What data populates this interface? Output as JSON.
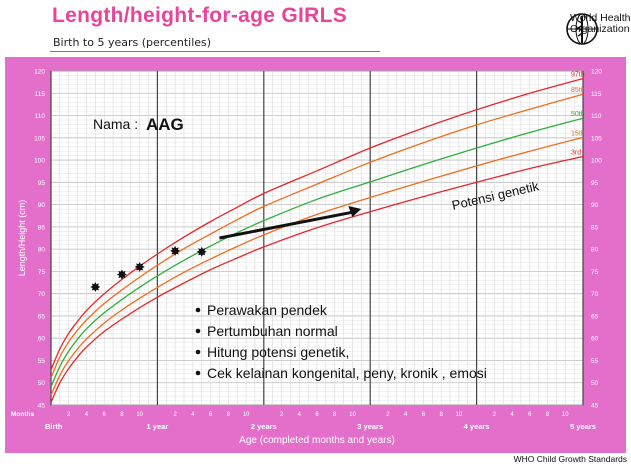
{
  "page": {
    "title": "Length/height-for-age GIRLS",
    "subtitle": "Birth to 5 years (percentiles)",
    "org_line1": "World Health",
    "org_line2": "Organization",
    "footer": "WHO Child Growth Standards"
  },
  "chart_data": {
    "type": "line",
    "xlabel": "Age (completed months and years)",
    "ylabel": "Length/Height (cm)",
    "xlim": [
      0,
      60
    ],
    "ylim": [
      45,
      120
    ],
    "grid": true,
    "months_label": "Months",
    "year_labels": [
      {
        "month": 0,
        "label": "Birth"
      },
      {
        "month": 12,
        "label": "1 year"
      },
      {
        "month": 24,
        "label": "2 years"
      },
      {
        "month": 36,
        "label": "3 years"
      },
      {
        "month": 48,
        "label": "4 years"
      },
      {
        "month": 60,
        "label": "5 years"
      }
    ],
    "y_ticks": [
      45,
      50,
      55,
      60,
      65,
      70,
      75,
      80,
      85,
      90,
      95,
      100,
      105,
      110,
      115,
      120
    ],
    "x": [
      0,
      1,
      2,
      3,
      4,
      6,
      9,
      12,
      15,
      18,
      21,
      24,
      30,
      36,
      42,
      48,
      54,
      60
    ],
    "series": [
      {
        "name": "97th",
        "color": "#e8262a",
        "values": [
          52.9,
          57.6,
          61.1,
          63.8,
          66.2,
          70.0,
          74.7,
          78.9,
          82.7,
          86.2,
          89.4,
          92.5,
          97.6,
          102.7,
          107.2,
          111.3,
          115.0,
          118.3
        ]
      },
      {
        "name": "85th",
        "color": "#f26b1d",
        "values": [
          51.1,
          55.8,
          59.2,
          61.8,
          64.1,
          67.8,
          72.3,
          76.4,
          80.1,
          83.4,
          86.6,
          89.6,
          94.6,
          99.5,
          103.9,
          107.9,
          111.4,
          114.8
        ]
      },
      {
        "name": "50th",
        "color": "#2fae3a",
        "values": [
          49.1,
          53.7,
          57.1,
          59.8,
          62.1,
          65.7,
          70.1,
          74.0,
          77.5,
          80.7,
          83.7,
          86.4,
          91.2,
          95.1,
          99.0,
          102.7,
          106.2,
          109.4
        ]
      },
      {
        "name": "15th",
        "color": "#f26b1d",
        "values": [
          47.2,
          51.7,
          55.0,
          57.6,
          59.8,
          63.4,
          67.7,
          71.4,
          74.8,
          77.8,
          80.6,
          83.2,
          87.8,
          91.6,
          95.2,
          98.7,
          102.0,
          105.1
        ]
      },
      {
        "name": "3rd",
        "color": "#e8262a",
        "values": [
          45.6,
          50.0,
          53.2,
          55.8,
          58.0,
          61.5,
          65.6,
          69.2,
          72.4,
          75.4,
          78.0,
          80.5,
          84.8,
          88.4,
          91.8,
          95.0,
          98.1,
          100.8
        ]
      }
    ],
    "patient_points": {
      "name": "AAG",
      "x": [
        5,
        8,
        10,
        14,
        17
      ],
      "y": [
        71.5,
        74.3,
        76.0,
        79.6,
        79.4
      ]
    },
    "annotations": {
      "name_label": "Nama :",
      "name_value": "AAG",
      "arrow_label": "Potensi genetik",
      "arrow_from": [
        19,
        82.5
      ],
      "arrow_to": [
        35,
        89
      ],
      "bullets": [
        "Perawakan pendek",
        "Pertumbuhan normal",
        "Hitung  potensi genetik,",
        "Cek kelainan kongenital, peny, kronik , emosi"
      ]
    }
  }
}
